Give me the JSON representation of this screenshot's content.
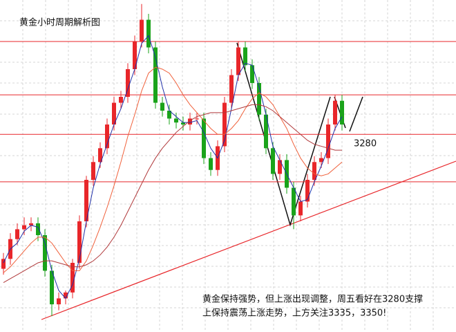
{
  "chart_data": {
    "type": "candlestick",
    "title": "黄金小时周期解析图",
    "annotation": [
      "黄金保持强势，但上涨出现调整，周五看好在3280支撑",
      "上保持震荡上涨走势，上方关注3335，3350!"
    ],
    "ylim": [
      3180,
      3348
    ],
    "up_color": "#e8262a",
    "down_color": "#1aa31a",
    "open": [
      3212,
      3217,
      3227,
      3232,
      3234,
      3235,
      3229,
      3211,
      3194,
      3197,
      3200,
      3215,
      3236,
      3257,
      3266,
      3273,
      3285,
      3296,
      3299,
      3313,
      3327,
      3338,
      3324,
      3296,
      3292,
      3288,
      3286,
      3285,
      3288,
      3288,
      3268,
      3262,
      3274,
      3296,
      3310,
      3324,
      3315,
      3306,
      3290,
      3273,
      3260,
      3267,
      3253,
      3239,
      3246,
      3257,
      3266,
      3268,
      3285,
      3297
    ],
    "high": [
      3220,
      3230,
      3235,
      3238,
      3238,
      3238,
      3232,
      3214,
      3200,
      3201,
      3217,
      3239,
      3259,
      3269,
      3276,
      3288,
      3299,
      3302,
      3316,
      3330,
      3346,
      3341,
      3327,
      3299,
      3295,
      3291,
      3289,
      3291,
      3291,
      3291,
      3271,
      3277,
      3299,
      3313,
      3327,
      3327,
      3318,
      3309,
      3293,
      3276,
      3270,
      3270,
      3256,
      3249,
      3260,
      3269,
      3271,
      3288,
      3300,
      3300
    ],
    "low": [
      3209,
      3214,
      3224,
      3229,
      3231,
      3226,
      3208,
      3188,
      3191,
      3194,
      3197,
      3212,
      3233,
      3254,
      3263,
      3270,
      3282,
      3293,
      3296,
      3310,
      3324,
      3321,
      3293,
      3289,
      3285,
      3283,
      3282,
      3282,
      3285,
      3265,
      3259,
      3259,
      3271,
      3293,
      3307,
      3312,
      3303,
      3287,
      3270,
      3257,
      3257,
      3250,
      3232,
      3236,
      3243,
      3254,
      3263,
      3265,
      3282,
      3282
    ],
    "close": [
      3217,
      3227,
      3232,
      3234,
      3235,
      3229,
      3211,
      3194,
      3197,
      3200,
      3215,
      3236,
      3257,
      3266,
      3273,
      3285,
      3296,
      3299,
      3313,
      3327,
      3338,
      3324,
      3296,
      3292,
      3288,
      3286,
      3285,
      3288,
      3288,
      3268,
      3262,
      3274,
      3296,
      3310,
      3324,
      3315,
      3306,
      3290,
      3273,
      3260,
      3267,
      3253,
      3239,
      3246,
      3257,
      3266,
      3268,
      3285,
      3297,
      3285
    ],
    "lines": [
      {
        "color": "#1f2fa8",
        "values": [
          3215,
          3222,
          3225,
          3231,
          3234,
          3233,
          3225,
          3211,
          3201,
          3197,
          3204,
          3217,
          3236,
          3253,
          3265,
          3275,
          3285,
          3293,
          3303,
          3313,
          3326,
          3330,
          3319,
          3304,
          3292,
          3289,
          3286,
          3286,
          3287,
          3281,
          3273,
          3268,
          3277,
          3293,
          3310,
          3316,
          3315,
          3304,
          3290,
          3274,
          3267,
          3260,
          3253,
          3246,
          3247,
          3256,
          3264,
          3273,
          3283,
          3289
        ]
      },
      {
        "color": "#f0603a",
        "values": [
          3210,
          3213,
          3217,
          3221,
          3225,
          3228,
          3228,
          3225,
          3220,
          3215,
          3211,
          3211,
          3216,
          3224,
          3233,
          3243,
          3254,
          3266,
          3279,
          3290,
          3302,
          3311,
          3314,
          3313,
          3311,
          3306,
          3300,
          3295,
          3291,
          3287,
          3283,
          3280,
          3280,
          3283,
          3287,
          3293,
          3298,
          3301,
          3299,
          3295,
          3289,
          3283,
          3275,
          3268,
          3263,
          3260,
          3259,
          3260,
          3263,
          3266
        ]
      },
      {
        "color": "#b0383a",
        "values": [
          3205,
          3207,
          3209,
          3211,
          3213,
          3215,
          3216,
          3216,
          3215,
          3214,
          3213,
          3213,
          3214,
          3216,
          3219,
          3223,
          3228,
          3234,
          3241,
          3248,
          3255,
          3262,
          3268,
          3273,
          3277,
          3281,
          3284,
          3287,
          3289,
          3290,
          3291,
          3291,
          3291,
          3292,
          3293,
          3294,
          3295,
          3295,
          3294,
          3292,
          3289,
          3286,
          3283,
          3280,
          3277,
          3275,
          3274,
          3273,
          3272,
          3272
        ]
      }
    ],
    "hlines": [
      3327,
      3300,
      3280,
      3256
    ],
    "hline_color": "#e8262a",
    "hline_label": 3280
  }
}
